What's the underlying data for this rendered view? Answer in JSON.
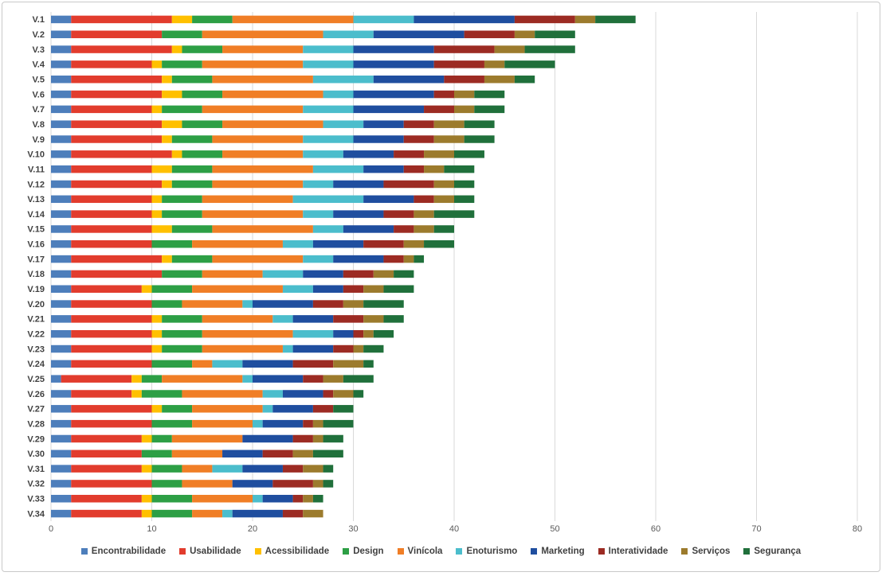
{
  "chart": {
    "background": "#FFFFFF",
    "border_color": "#C9C9C9",
    "gridline_color": "#D9D9D9",
    "category_label_color": "#404040",
    "tick_label_color": "#595959"
  },
  "chart_data": {
    "type": "bar",
    "orientation": "horizontal",
    "stacked": true,
    "title": "",
    "xlabel": "",
    "ylabel": "",
    "xlim": [
      0,
      80
    ],
    "grid": true,
    "legend_position": "bottom",
    "x_ticks": [
      "0",
      "10",
      "20",
      "30",
      "40",
      "50",
      "60",
      "70",
      "80"
    ],
    "categories": [
      "V.1",
      "V.2",
      "V.3",
      "V.4",
      "V.5",
      "V.6",
      "V.7",
      "V.8",
      "V.9",
      "V.10",
      "V.11",
      "V.12",
      "V.13",
      "V.14",
      "V.15",
      "V.16",
      "V.17",
      "V.18",
      "V.19",
      "V.20",
      "V.21",
      "V.22",
      "V.23",
      "V.24",
      "V.25",
      "V.26",
      "V.27",
      "V.28",
      "V.29",
      "V.30",
      "V.31",
      "V.32",
      "V.33",
      "V.34"
    ],
    "series": [
      {
        "name": "Encontrabilidade",
        "color": "#4D7EBB",
        "values": [
          2,
          2,
          2,
          2,
          2,
          2,
          2,
          2,
          2,
          2,
          2,
          2,
          2,
          2,
          2,
          2,
          2,
          2,
          2,
          2,
          2,
          2,
          2,
          2,
          1,
          2,
          2,
          2,
          2,
          2,
          2,
          2,
          2,
          2
        ]
      },
      {
        "name": "Usabilidade",
        "color": "#E23C2D",
        "values": [
          10,
          9,
          10,
          8,
          9,
          9,
          8,
          9,
          9,
          10,
          8,
          9,
          8,
          8,
          8,
          8,
          9,
          9,
          7,
          8,
          8,
          8,
          8,
          8,
          7,
          6,
          8,
          8,
          7,
          7,
          7,
          8,
          7,
          7
        ]
      },
      {
        "name": "Acessibilidade",
        "color": "#FFC000",
        "values": [
          2,
          0,
          1,
          1,
          1,
          2,
          1,
          2,
          1,
          1,
          2,
          1,
          1,
          1,
          2,
          0,
          1,
          0,
          1,
          0,
          1,
          1,
          1,
          0,
          1,
          1,
          1,
          0,
          1,
          0,
          1,
          0,
          1,
          1
        ]
      },
      {
        "name": "Design",
        "color": "#2D9F45",
        "values": [
          4,
          4,
          4,
          4,
          4,
          4,
          4,
          4,
          4,
          4,
          4,
          4,
          4,
          4,
          4,
          4,
          4,
          4,
          4,
          3,
          4,
          4,
          4,
          4,
          2,
          4,
          3,
          4,
          2,
          3,
          3,
          3,
          4,
          4
        ]
      },
      {
        "name": "Vinícola",
        "color": "#F07E26",
        "values": [
          12,
          12,
          8,
          10,
          10,
          10,
          10,
          10,
          9,
          8,
          10,
          9,
          9,
          10,
          10,
          9,
          9,
          6,
          9,
          6,
          7,
          9,
          8,
          2,
          8,
          8,
          7,
          6,
          7,
          5,
          3,
          5,
          6,
          3
        ]
      },
      {
        "name": "Enoturismo",
        "color": "#4BBDCC",
        "values": [
          6,
          5,
          5,
          5,
          6,
          3,
          5,
          4,
          5,
          4,
          5,
          3,
          7,
          3,
          3,
          3,
          3,
          4,
          3,
          1,
          2,
          4,
          1,
          3,
          1,
          2,
          1,
          1,
          0,
          0,
          3,
          0,
          1,
          1
        ]
      },
      {
        "name": "Marketing",
        "color": "#1F4E9F",
        "values": [
          10,
          9,
          8,
          8,
          7,
          8,
          7,
          4,
          5,
          5,
          4,
          5,
          5,
          5,
          5,
          5,
          5,
          4,
          3,
          6,
          4,
          2,
          4,
          5,
          5,
          4,
          4,
          4,
          5,
          4,
          4,
          4,
          3,
          5
        ]
      },
      {
        "name": "Interatividade",
        "color": "#9C2B23",
        "values": [
          6,
          5,
          6,
          5,
          4,
          2,
          3,
          3,
          3,
          3,
          2,
          5,
          2,
          3,
          2,
          4,
          2,
          3,
          2,
          3,
          3,
          1,
          2,
          4,
          2,
          1,
          2,
          1,
          2,
          3,
          2,
          4,
          1,
          2
        ]
      },
      {
        "name": "Serviços",
        "color": "#9C7B2D",
        "values": [
          2,
          2,
          3,
          2,
          3,
          2,
          2,
          3,
          3,
          3,
          2,
          2,
          2,
          2,
          2,
          2,
          1,
          2,
          2,
          2,
          2,
          1,
          1,
          3,
          2,
          2,
          0,
          1,
          1,
          2,
          2,
          1,
          1,
          2
        ]
      },
      {
        "name": "Segurança",
        "color": "#20703B",
        "values": [
          4,
          4,
          5,
          5,
          2,
          3,
          3,
          3,
          3,
          3,
          3,
          2,
          2,
          4,
          2,
          3,
          1,
          2,
          3,
          4,
          2,
          2,
          2,
          1,
          3,
          1,
          2,
          3,
          2,
          3,
          1,
          1,
          1,
          0
        ]
      }
    ]
  }
}
